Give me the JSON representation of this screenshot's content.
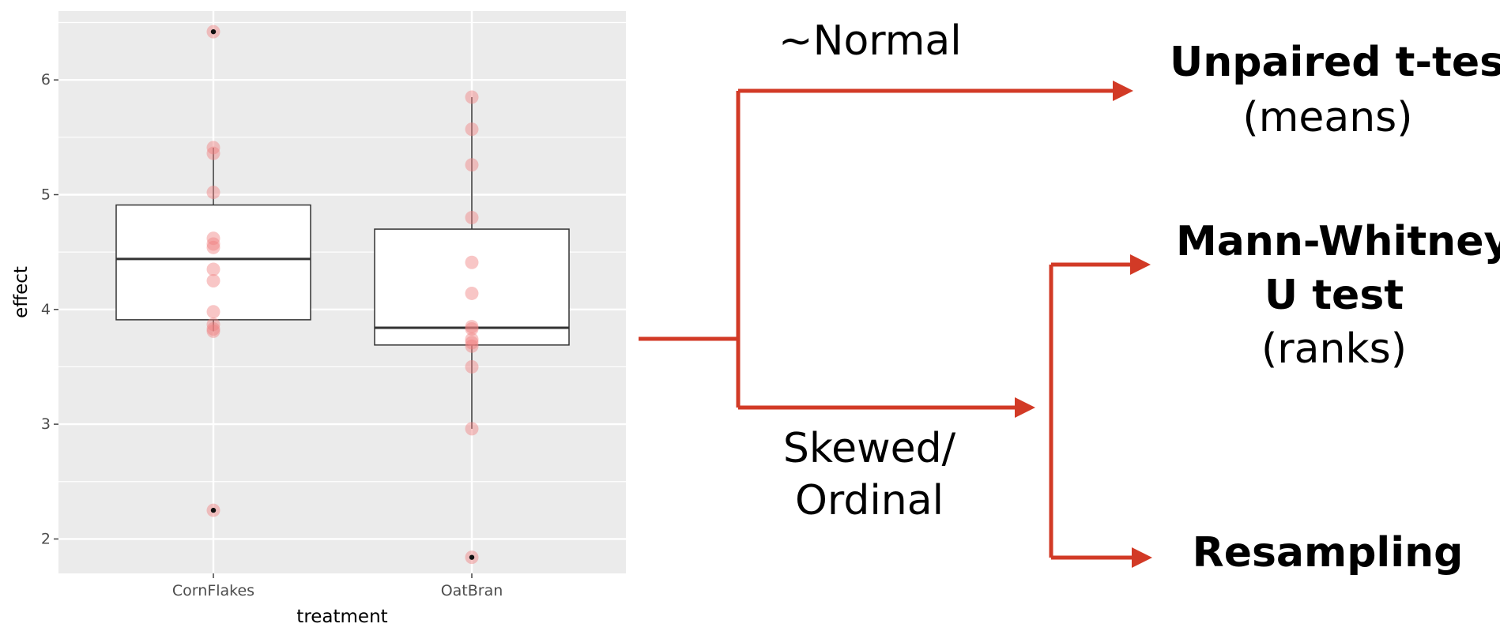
{
  "chart_data": {
    "type": "boxplot",
    "xlabel": "treatment",
    "ylabel": "effect",
    "ylim": [
      1.7,
      6.6
    ],
    "yticks": [
      2,
      3,
      4,
      5,
      6
    ],
    "categories": [
      "CornFlakes",
      "OatBran"
    ],
    "boxes": [
      {
        "name": "CornFlakes",
        "q1": 3.91,
        "median": 4.44,
        "q3": 4.91,
        "whisker_low": 3.81,
        "whisker_high": 5.41,
        "points": [
          6.42,
          5.41,
          5.36,
          5.02,
          4.62,
          4.57,
          4.54,
          4.35,
          4.25,
          3.98,
          3.87,
          3.83,
          3.81,
          2.25
        ],
        "outliers": [
          6.42,
          2.25
        ]
      },
      {
        "name": "OatBran",
        "q1": 3.69,
        "median": 3.84,
        "q3": 4.7,
        "whisker_low": 2.96,
        "whisker_high": 5.85,
        "points": [
          5.85,
          5.57,
          5.26,
          4.8,
          4.41,
          4.14,
          3.85,
          3.83,
          3.74,
          3.71,
          3.68,
          3.5,
          2.96,
          1.84
        ],
        "outliers": [
          1.84
        ]
      }
    ],
    "grid": true,
    "colors": {
      "panel": "#ebebeb",
      "grid": "#ffffff",
      "point": "#f08080",
      "box_fill": "#ffffff",
      "box_line": "#333333",
      "outlier": "#111111"
    }
  },
  "flow": {
    "arrow_color": "#d23a26",
    "normal_label": "~Normal",
    "skewed_label_line1": "Skewed/",
    "skewed_label_line2": "Ordinal",
    "ttest_title": "Unpaired t-test",
    "ttest_sub": "(means)",
    "mw_title_line1": "Mann-Whitney",
    "mw_title_line2": "U test",
    "mw_sub": "(ranks)",
    "resampling": "Resampling"
  }
}
